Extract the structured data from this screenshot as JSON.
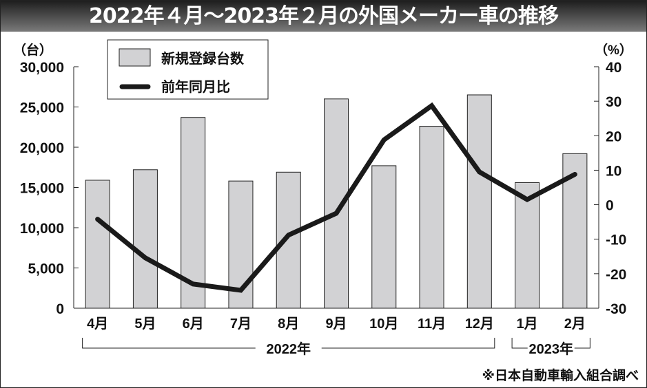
{
  "chart_data": {
    "type": "bar+line",
    "title": "2022年４月～2023年２月の外国メーカー車の推移",
    "categories": [
      "4月",
      "5月",
      "6月",
      "7月",
      "8月",
      "9月",
      "10月",
      "11月",
      "12月",
      "1月",
      "2月"
    ],
    "year_groups": [
      {
        "label": "2022年",
        "from": 0,
        "to": 8
      },
      {
        "label": "2023年",
        "from": 9,
        "to": 10
      }
    ],
    "series": [
      {
        "name": "新規登録台数",
        "type": "bar",
        "axis": "left",
        "values": [
          15900,
          17200,
          23700,
          15800,
          16900,
          26000,
          17700,
          22600,
          26500,
          15600,
          19200
        ]
      },
      {
        "name": "前年同月比",
        "type": "line",
        "axis": "right",
        "values": [
          -4.2,
          -15.4,
          -23.0,
          -24.8,
          -8.8,
          -2.5,
          18.8,
          28.7,
          9.5,
          1.5,
          8.8
        ]
      }
    ],
    "left_axis": {
      "unit_label": "（台）",
      "ylim": [
        0,
        30000
      ],
      "ticks": [
        0,
        5000,
        10000,
        15000,
        20000,
        25000,
        30000
      ],
      "tick_labels": [
        "0",
        "5,000",
        "10,000",
        "15,000",
        "20,000",
        "25,000",
        "30,000"
      ]
    },
    "right_axis": {
      "unit_label": "（%）",
      "ylim": [
        -30,
        40
      ],
      "ticks": [
        -30,
        -20,
        -10,
        0,
        10,
        20,
        30,
        40
      ],
      "tick_labels": [
        "-30",
        "-20",
        "-10",
        "0",
        "10",
        "20",
        "30",
        "40"
      ]
    },
    "legend_position": "top-left",
    "source": "※日本自動車輸入組合調べ",
    "colors": {
      "bar": "#d2d2d4",
      "line": "#1a1a1a"
    }
  }
}
